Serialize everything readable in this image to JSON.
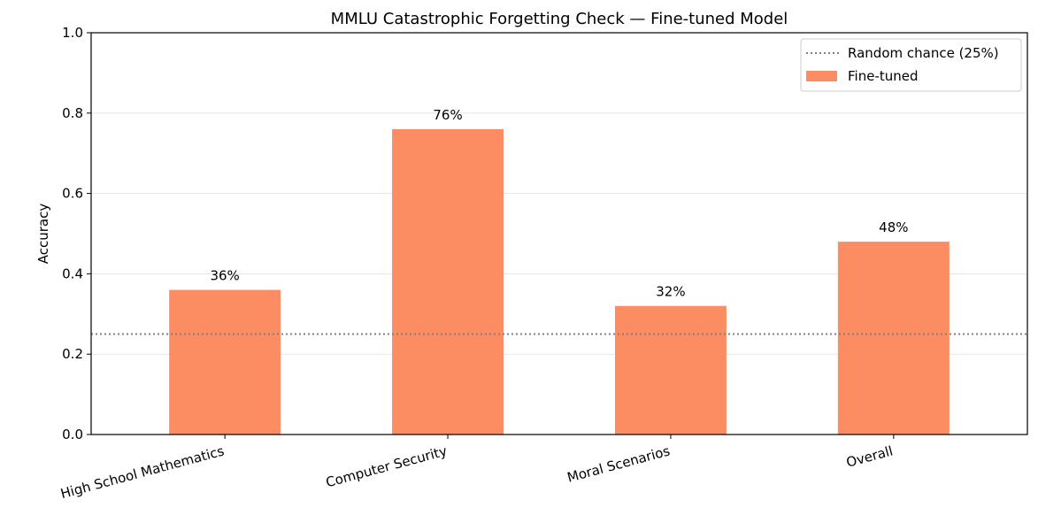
{
  "chart_data": {
    "type": "bar",
    "title": "MMLU Catastrophic Forgetting Check — Fine-tuned Model",
    "xlabel": "",
    "ylabel": "Accuracy",
    "ylim": [
      0,
      1.0
    ],
    "yticks": [
      "0.0",
      "0.2",
      "0.4",
      "0.6",
      "0.8",
      "1.0"
    ],
    "categories": [
      "High School Mathematics",
      "Computer Security",
      "Moral Scenarios",
      "Overall"
    ],
    "series": [
      {
        "name": "Fine-tuned",
        "values": [
          0.36,
          0.76,
          0.32,
          0.48
        ],
        "labels": [
          "36%",
          "76%",
          "32%",
          "48%"
        ],
        "color": "#FC8D62"
      }
    ],
    "reference_lines": [
      {
        "name": "Random chance (25%)",
        "value": 0.25,
        "style": "dotted",
        "color": "#808080"
      }
    ],
    "grid": "horizontal",
    "legend_position": "top-right"
  }
}
